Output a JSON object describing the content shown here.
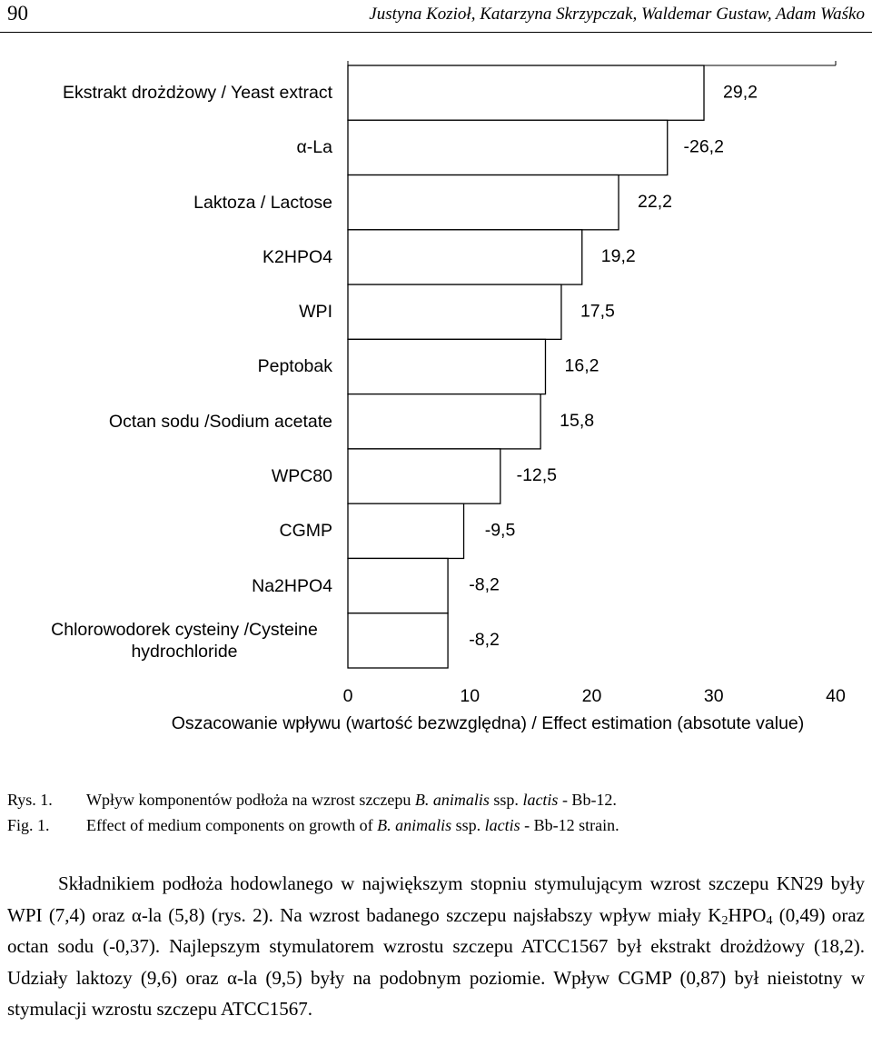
{
  "header": {
    "page_number": "90",
    "authors": "Justyna Kozioł, Katarzyna Skrzypczak, Waldemar Gustaw, Adam Waśko"
  },
  "chart_data": {
    "type": "bar",
    "orientation": "horizontal",
    "categories": [
      "Ekstrakt drożdżowy / Yeast extract",
      "α-La",
      "Laktoza / Lactose",
      "K2HPO4",
      "WPI",
      "Peptobak",
      "Octan sodu /Sodium acetate",
      "WPC80",
      "CGMP",
      "Na2HPO4",
      "Chlorowodorek cysteiny /Cysteine hydrochloride"
    ],
    "values": [
      29.2,
      -26.2,
      22.2,
      19.2,
      17.5,
      16.2,
      15.8,
      -12.5,
      -9.5,
      -8.2,
      -8.2
    ],
    "value_labels": [
      "29,2",
      "-26,2",
      "22,2",
      "19,2",
      "17,5",
      "16,2",
      "15,8",
      "-12,5",
      "-9,5",
      "-8,2",
      "-8,2"
    ],
    "color": "#ffffff",
    "x_label": "Oszacowanie wpływu (wartość bezwzględna) / Effect estimation (absotute value)",
    "xlim": [
      0,
      40
    ],
    "xticks": [
      0,
      10,
      20,
      30,
      40
    ]
  },
  "caption": {
    "pl_label": "Rys. 1.",
    "pl": [
      "Wpływ komponentów podłoża na wzrost szczepu ",
      "B. animalis",
      " ssp. ",
      "lactis",
      " - Bb-12."
    ],
    "en_label": "Fig. 1.",
    "en": [
      "Effect of medium components on growth of ",
      "B. animalis",
      " ssp. ",
      "lactis",
      " - Bb-12 strain."
    ]
  },
  "paragraph": [
    "Składnikiem podłoża hodowlanego w największym stopniu stymulującym wzrost szczepu KN29 były WPI (7,4) oraz α-la (5,8) (rys. 2). Na wzrost badanego szczepu najsłabszy wpływ miały K",
    "2",
    "HPO",
    "4",
    " (0,49) oraz octan sodu (-0,37). Najlepszym stymulatorem wzrostu szczepu ATCC1567 był ekstrakt drożdżowy (18,2). Udziały laktozy (9,6) oraz α-la (9,5) były na podobnym poziomie. Wpływ CGMP (0,87) był nieistotny w stymulacji wzrostu szczepu ATCC1567."
  ]
}
